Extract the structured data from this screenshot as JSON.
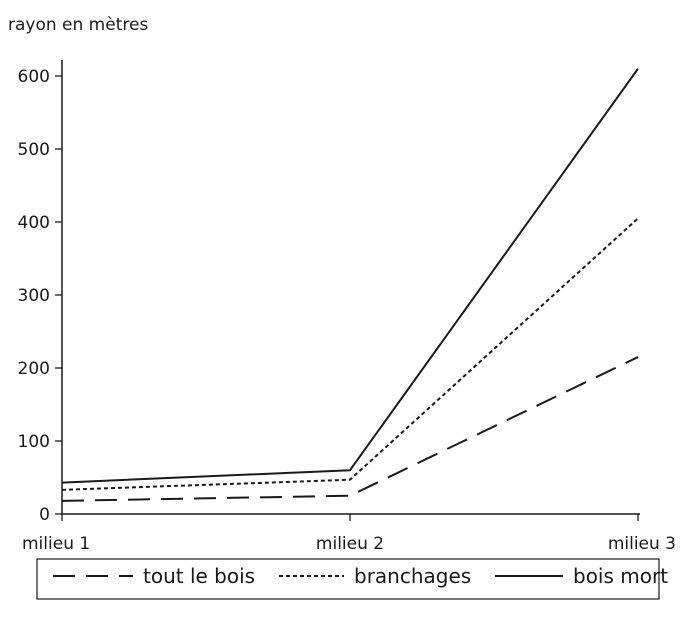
{
  "chart_data": {
    "type": "line",
    "ylabel": "rayon en mètres",
    "xlabel": "",
    "categories": [
      "milieu 1",
      "milieu 2",
      "milieu 3"
    ],
    "ylim": [
      0,
      600
    ],
    "yticks": [
      0,
      100,
      200,
      300,
      400,
      500,
      600
    ],
    "grid": false,
    "legend_position": "bottom",
    "series": [
      {
        "name": "tout le bois",
        "values": [
          18,
          25,
          215
        ],
        "style": "dashed",
        "color": "#1a1a1a"
      },
      {
        "name": "branchages",
        "values": [
          33,
          47,
          405
        ],
        "style": "dotted",
        "color": "#1a1a1a"
      },
      {
        "name": "bois mort",
        "values": [
          43,
          60,
          610
        ],
        "style": "solid",
        "color": "#1a1a1a"
      }
    ]
  }
}
